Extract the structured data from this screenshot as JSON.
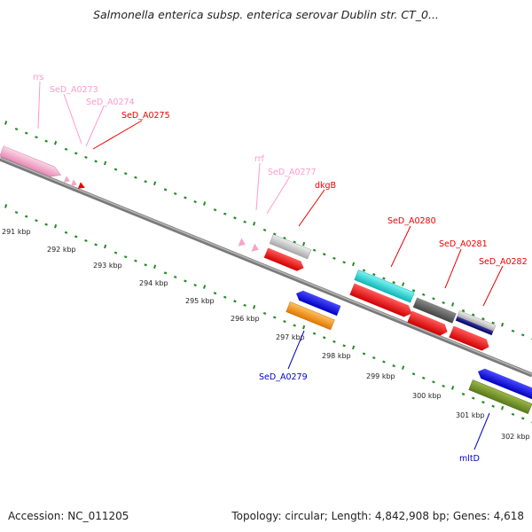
{
  "title": "Salmonella enterica subsp. enterica serovar Dublin str. CT_0...",
  "footer": {
    "accession": "Accession: NC_011205",
    "topology": "Topology: circular; Length: 4,842,908 bp; Genes: 4,618"
  },
  "colors": {
    "backbone": "#8c8c8c",
    "ticks": "#228b22",
    "rrna": "#f4a6c8",
    "trna_label": "#ff9ac8",
    "cds": "#ff0000",
    "leader_blue": "#0000cc"
  },
  "kbp_labels": [
    "291 kbp",
    "292 kbp",
    "293 kbp",
    "294 kbp",
    "295 kbp",
    "296 kbp",
    "297 kbp",
    "298 kbp",
    "299 kbp",
    "300 kbp",
    "301 kbp",
    "302 kbp"
  ],
  "gene_labels": [
    {
      "id": "rrs",
      "text": "rrs",
      "color": "#ff9ac8"
    },
    {
      "id": "sed-a0273",
      "text": "SeD_A0273",
      "color": "#ff9ac8"
    },
    {
      "id": "sed-a0274",
      "text": "SeD_A0274",
      "color": "#ff9ac8"
    },
    {
      "id": "sed-a0275",
      "text": "SeD_A0275",
      "color": "#ee0000"
    },
    {
      "id": "rrf",
      "text": "rrf",
      "color": "#ff9ac8"
    },
    {
      "id": "sed-a0277",
      "text": "SeD_A0277",
      "color": "#ff9ac8"
    },
    {
      "id": "dkgb",
      "text": "dkgB",
      "color": "#ee0000"
    },
    {
      "id": "sed-a0280",
      "text": "SeD_A0280",
      "color": "#ee0000"
    },
    {
      "id": "sed-a0281",
      "text": "SeD_A0281",
      "color": "#ee0000"
    },
    {
      "id": "sed-a0282",
      "text": "SeD_A0282",
      "color": "#ee0000"
    },
    {
      "id": "sed-a0279",
      "text": "SeD_A0279",
      "color": "#0000cc"
    },
    {
      "id": "mltd",
      "text": "mltD",
      "color": "#0000cc"
    }
  ]
}
